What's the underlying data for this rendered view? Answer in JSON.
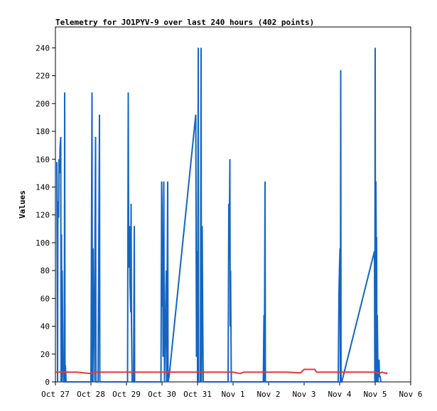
{
  "chart_data": {
    "type": "line",
    "title": "Telemetry for JO1PYV-9 over last 240 hours (402 points)",
    "xlabel": "",
    "ylabel": "Values",
    "x_tick_labels": [
      "Oct 27",
      "Oct 28",
      "Oct 29",
      "Oct 30",
      "Oct 31",
      "Nov 1",
      "Nov 2",
      "Nov 3",
      "Nov 4",
      "Nov 5",
      "Nov 6"
    ],
    "xlim_days": [
      0,
      10.0
    ],
    "ylim": [
      0,
      255
    ],
    "y_ticks": [
      0,
      20,
      40,
      60,
      80,
      100,
      120,
      140,
      160,
      180,
      200,
      220,
      240
    ],
    "grid": false,
    "legend": "none",
    "series": [
      {
        "color": "#1565c0",
        "points": [
          [
            0.04,
            158
          ],
          [
            0.06,
            0
          ],
          [
            0.07,
            130
          ],
          [
            0.09,
            118
          ],
          [
            0.1,
            160
          ],
          [
            0.12,
            150
          ],
          [
            0.13,
            168
          ],
          [
            0.15,
            176
          ],
          [
            0.16,
            0
          ],
          [
            0.17,
            106
          ],
          [
            0.18,
            0
          ],
          [
            0.19,
            80
          ],
          [
            0.21,
            20
          ],
          [
            0.23,
            0
          ],
          [
            0.25,
            0
          ],
          [
            0.26,
            208
          ],
          [
            0.27,
            0
          ],
          [
            0.28,
            12
          ],
          [
            0.3,
            0
          ],
          [
            0.4,
            0
          ],
          [
            1.0,
            0
          ],
          [
            1.03,
            208
          ],
          [
            1.04,
            0
          ],
          [
            1.06,
            96
          ],
          [
            1.07,
            24
          ],
          [
            1.08,
            64
          ],
          [
            1.09,
            0
          ],
          [
            1.13,
            176
          ],
          [
            1.14,
            0
          ],
          [
            1.2,
            0
          ],
          [
            1.24,
            192
          ],
          [
            1.25,
            0
          ],
          [
            1.4,
            0
          ],
          [
            2.03,
            0
          ],
          [
            2.05,
            208
          ],
          [
            2.06,
            106
          ],
          [
            2.08,
            82
          ],
          [
            2.09,
            112
          ],
          [
            2.1,
            70
          ],
          [
            2.12,
            50
          ],
          [
            2.13,
            128
          ],
          [
            2.14,
            46
          ],
          [
            2.16,
            0
          ],
          [
            2.2,
            0
          ],
          [
            2.22,
            112
          ],
          [
            2.23,
            0
          ],
          [
            2.4,
            0
          ],
          [
            2.97,
            0
          ],
          [
            2.99,
            144
          ],
          [
            3.0,
            126
          ],
          [
            3.01,
            54
          ],
          [
            3.02,
            90
          ],
          [
            3.03,
            18
          ],
          [
            3.05,
            144
          ],
          [
            3.06,
            64
          ],
          [
            3.07,
            0
          ],
          [
            3.12,
            80
          ],
          [
            3.13,
            0
          ],
          [
            3.16,
            144
          ],
          [
            3.17,
            0
          ],
          [
            3.2,
            4
          ],
          [
            3.95,
            192
          ],
          [
            3.97,
            18
          ],
          [
            3.99,
            94
          ],
          [
            4.0,
            0
          ],
          [
            4.02,
            240
          ],
          [
            4.03,
            0
          ],
          [
            4.08,
            0
          ],
          [
            4.1,
            240
          ],
          [
            4.11,
            0
          ],
          [
            4.13,
            112
          ],
          [
            4.15,
            32
          ],
          [
            4.16,
            0
          ],
          [
            4.32,
            0
          ],
          [
            4.86,
            0
          ],
          [
            4.88,
            128
          ],
          [
            4.89,
            88
          ],
          [
            4.91,
            160
          ],
          [
            4.92,
            40
          ],
          [
            4.93,
            80
          ],
          [
            4.95,
            0
          ],
          [
            5.1,
            0
          ],
          [
            5.85,
            0
          ],
          [
            5.87,
            48
          ],
          [
            5.88,
            0
          ],
          [
            5.9,
            144
          ],
          [
            5.91,
            0
          ],
          [
            6.1,
            0
          ],
          [
            7.5,
            0
          ],
          [
            7.96,
            0
          ],
          [
            7.98,
            64
          ],
          [
            7.99,
            76
          ],
          [
            8.01,
            96
          ],
          [
            8.02,
            0
          ],
          [
            8.03,
            224
          ],
          [
            8.04,
            0
          ],
          [
            8.06,
            0
          ],
          [
            8.98,
            94
          ],
          [
            8.99,
            0
          ],
          [
            9.0,
            240
          ],
          [
            9.01,
            0
          ],
          [
            9.02,
            144
          ],
          [
            9.03,
            96
          ],
          [
            9.04,
            104
          ],
          [
            9.05,
            0
          ],
          [
            9.06,
            48
          ],
          [
            9.08,
            0
          ],
          [
            9.11,
            16
          ],
          [
            9.12,
            4
          ],
          [
            9.14,
            4
          ],
          [
            9.16,
            0
          ]
        ]
      },
      {
        "color": "#e53935",
        "points": [
          [
            0.0,
            7
          ],
          [
            0.6,
            7
          ],
          [
            0.8,
            6.5
          ],
          [
            1.0,
            6
          ],
          [
            1.05,
            7
          ],
          [
            1.5,
            7
          ],
          [
            2.0,
            7
          ],
          [
            3.0,
            7
          ],
          [
            4.0,
            7
          ],
          [
            5.0,
            7
          ],
          [
            5.2,
            6
          ],
          [
            5.3,
            7
          ],
          [
            6.0,
            7
          ],
          [
            6.5,
            7
          ],
          [
            6.9,
            6.5
          ],
          [
            7.0,
            9
          ],
          [
            7.3,
            9
          ],
          [
            7.35,
            7
          ],
          [
            8.0,
            7
          ],
          [
            9.0,
            7
          ],
          [
            9.1,
            6
          ],
          [
            9.2,
            7
          ],
          [
            9.32,
            6
          ],
          [
            9.33,
            7
          ]
        ]
      }
    ]
  }
}
